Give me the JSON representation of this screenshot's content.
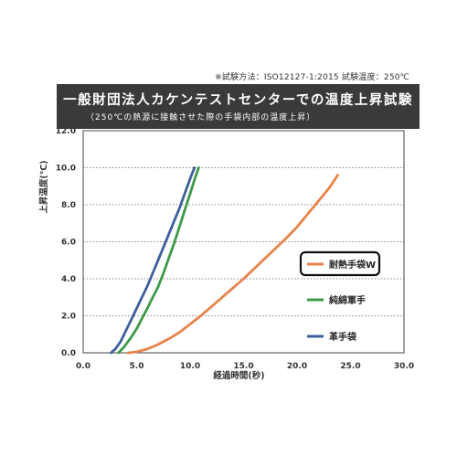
{
  "header": {
    "note": "※試験方法：ISO12127-1:2015 試験温度：250℃",
    "title": "一般財団法人カケンテストセンターでの温度上昇試験",
    "subtitle": "（250℃の熱源に接触させた際の手袋内部の温度上昇）"
  },
  "chart_data": {
    "type": "line",
    "xlabel": "経過時間(秒)",
    "ylabel": "上昇温度(℃)",
    "xlim": [
      0,
      30
    ],
    "ylim": [
      0,
      12
    ],
    "x_ticks": [
      "0.0",
      "5.0",
      "10.0",
      "15.0",
      "20.0",
      "25.0",
      "30.0"
    ],
    "y_ticks": [
      "0.0",
      "2.0",
      "4.0",
      "6.0",
      "8.0",
      "10.0",
      "12.0"
    ],
    "grid": "horizontal dotted",
    "legend_position": "right",
    "series": [
      {
        "name": "耐熱手袋W",
        "color": "#e8834a",
        "highlighted": true,
        "x": [
          4.2,
          5.0,
          6.0,
          7.0,
          8.0,
          9.0,
          10.0,
          11.0,
          12.0,
          13.0,
          14.0,
          15.0,
          16.0,
          17.0,
          18.0,
          19.0,
          20.0,
          21.0,
          22.0,
          23.0,
          23.8
        ],
        "y": [
          0.0,
          0.05,
          0.2,
          0.45,
          0.75,
          1.1,
          1.55,
          2.0,
          2.5,
          3.0,
          3.5,
          4.0,
          4.55,
          5.1,
          5.65,
          6.2,
          6.8,
          7.5,
          8.2,
          8.9,
          9.6
        ]
      },
      {
        "name": "純綿軍手",
        "color": "#3d9a49",
        "x": [
          3.3,
          3.8,
          4.5,
          5.0,
          5.5,
          6.0,
          6.5,
          7.0,
          7.5,
          8.0,
          8.5,
          9.0,
          9.5,
          10.0,
          10.5,
          10.8
        ],
        "y": [
          0.0,
          0.3,
          0.85,
          1.3,
          1.85,
          2.4,
          3.0,
          3.55,
          4.3,
          5.1,
          5.9,
          6.8,
          7.7,
          8.6,
          9.5,
          10.0
        ]
      },
      {
        "name": "革手袋",
        "color": "#3d5f9c",
        "x": [
          2.6,
          3.0,
          3.5,
          4.0,
          4.5,
          5.0,
          5.5,
          6.0,
          6.5,
          7.0,
          7.5,
          8.0,
          8.5,
          9.0,
          9.5,
          10.0,
          10.4
        ],
        "y": [
          0.0,
          0.2,
          0.6,
          1.2,
          1.8,
          2.4,
          3.0,
          3.6,
          4.3,
          5.0,
          5.7,
          6.4,
          7.1,
          7.8,
          8.6,
          9.4,
          10.0
        ]
      }
    ]
  }
}
